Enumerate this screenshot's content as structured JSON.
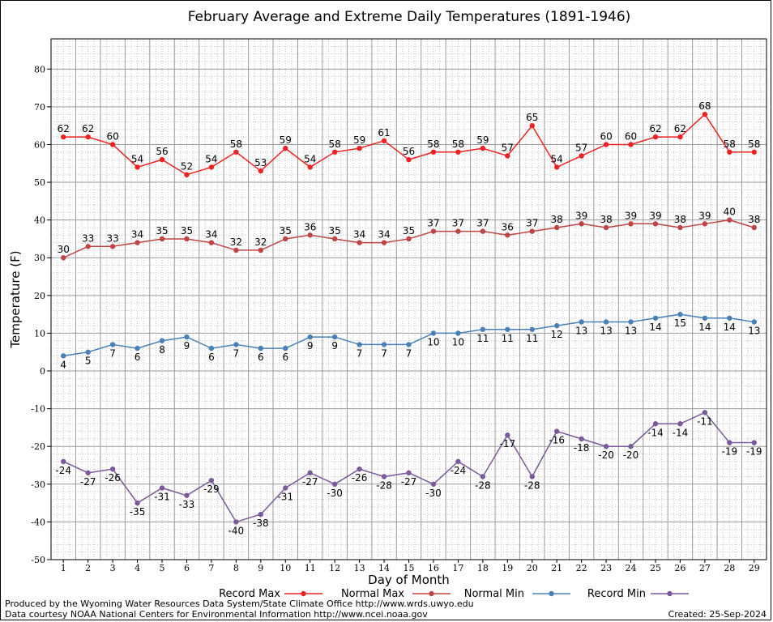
{
  "chart_data": {
    "type": "line",
    "title": "February Average and Extreme Daily Temperatures (1891-1946)",
    "xlabel": "Day of Month",
    "ylabel": "Temperature (F)",
    "ylim": [
      -50,
      88
    ],
    "yticks": [
      -50,
      -40,
      -30,
      -20,
      -10,
      0,
      10,
      20,
      30,
      40,
      50,
      60,
      70,
      80
    ],
    "x": [
      1,
      2,
      3,
      4,
      5,
      6,
      7,
      8,
      9,
      10,
      11,
      12,
      13,
      14,
      15,
      16,
      17,
      18,
      19,
      20,
      21,
      22,
      23,
      24,
      25,
      26,
      27,
      28,
      29
    ],
    "grid": true,
    "legend_position": "bottom",
    "series": [
      {
        "name": "Record Max",
        "color": "#ee2222",
        "label_position": "above",
        "values": [
          62,
          62,
          60,
          54,
          56,
          52,
          54,
          58,
          53,
          59,
          54,
          58,
          59,
          61,
          56,
          58,
          58,
          59,
          57,
          65,
          54,
          57,
          60,
          60,
          62,
          62,
          68,
          58,
          58
        ]
      },
      {
        "name": "Normal Max",
        "color": "#c04444",
        "label_position": "above",
        "values": [
          30,
          33,
          33,
          34,
          35,
          35,
          34,
          32,
          32,
          35,
          36,
          35,
          34,
          34,
          35,
          37,
          37,
          37,
          36,
          37,
          38,
          39,
          38,
          39,
          39,
          38,
          39,
          40,
          38
        ]
      },
      {
        "name": "Normal Min",
        "color": "#4a80b8",
        "label_position": "below",
        "values": [
          4,
          5,
          7,
          6,
          8,
          9,
          6,
          7,
          6,
          6,
          9,
          9,
          7,
          7,
          7,
          10,
          10,
          11,
          11,
          11,
          12,
          13,
          13,
          13,
          14,
          15,
          14,
          14,
          13
        ]
      },
      {
        "name": "Record Min",
        "color": "#7a5a9a",
        "label_position": "below",
        "values": [
          -24,
          -27,
          -26,
          -35,
          -31,
          -33,
          -29,
          -40,
          -38,
          -31,
          -27,
          -30,
          -26,
          -28,
          -27,
          -30,
          -24,
          -28,
          -17,
          -28,
          -16,
          -18,
          -20,
          -20,
          -14,
          -14,
          -11,
          -19,
          -19
        ]
      }
    ]
  },
  "footer": {
    "line1": "Produced by the Wyoming Water Resources Data System/State Climate Office http://www.wrds.uwyo.edu",
    "line2": "Data courtesy NOAA National Centers for Environmental Information http://www.ncei.noaa.gov",
    "created": "Created:  25-Sep-2024"
  }
}
